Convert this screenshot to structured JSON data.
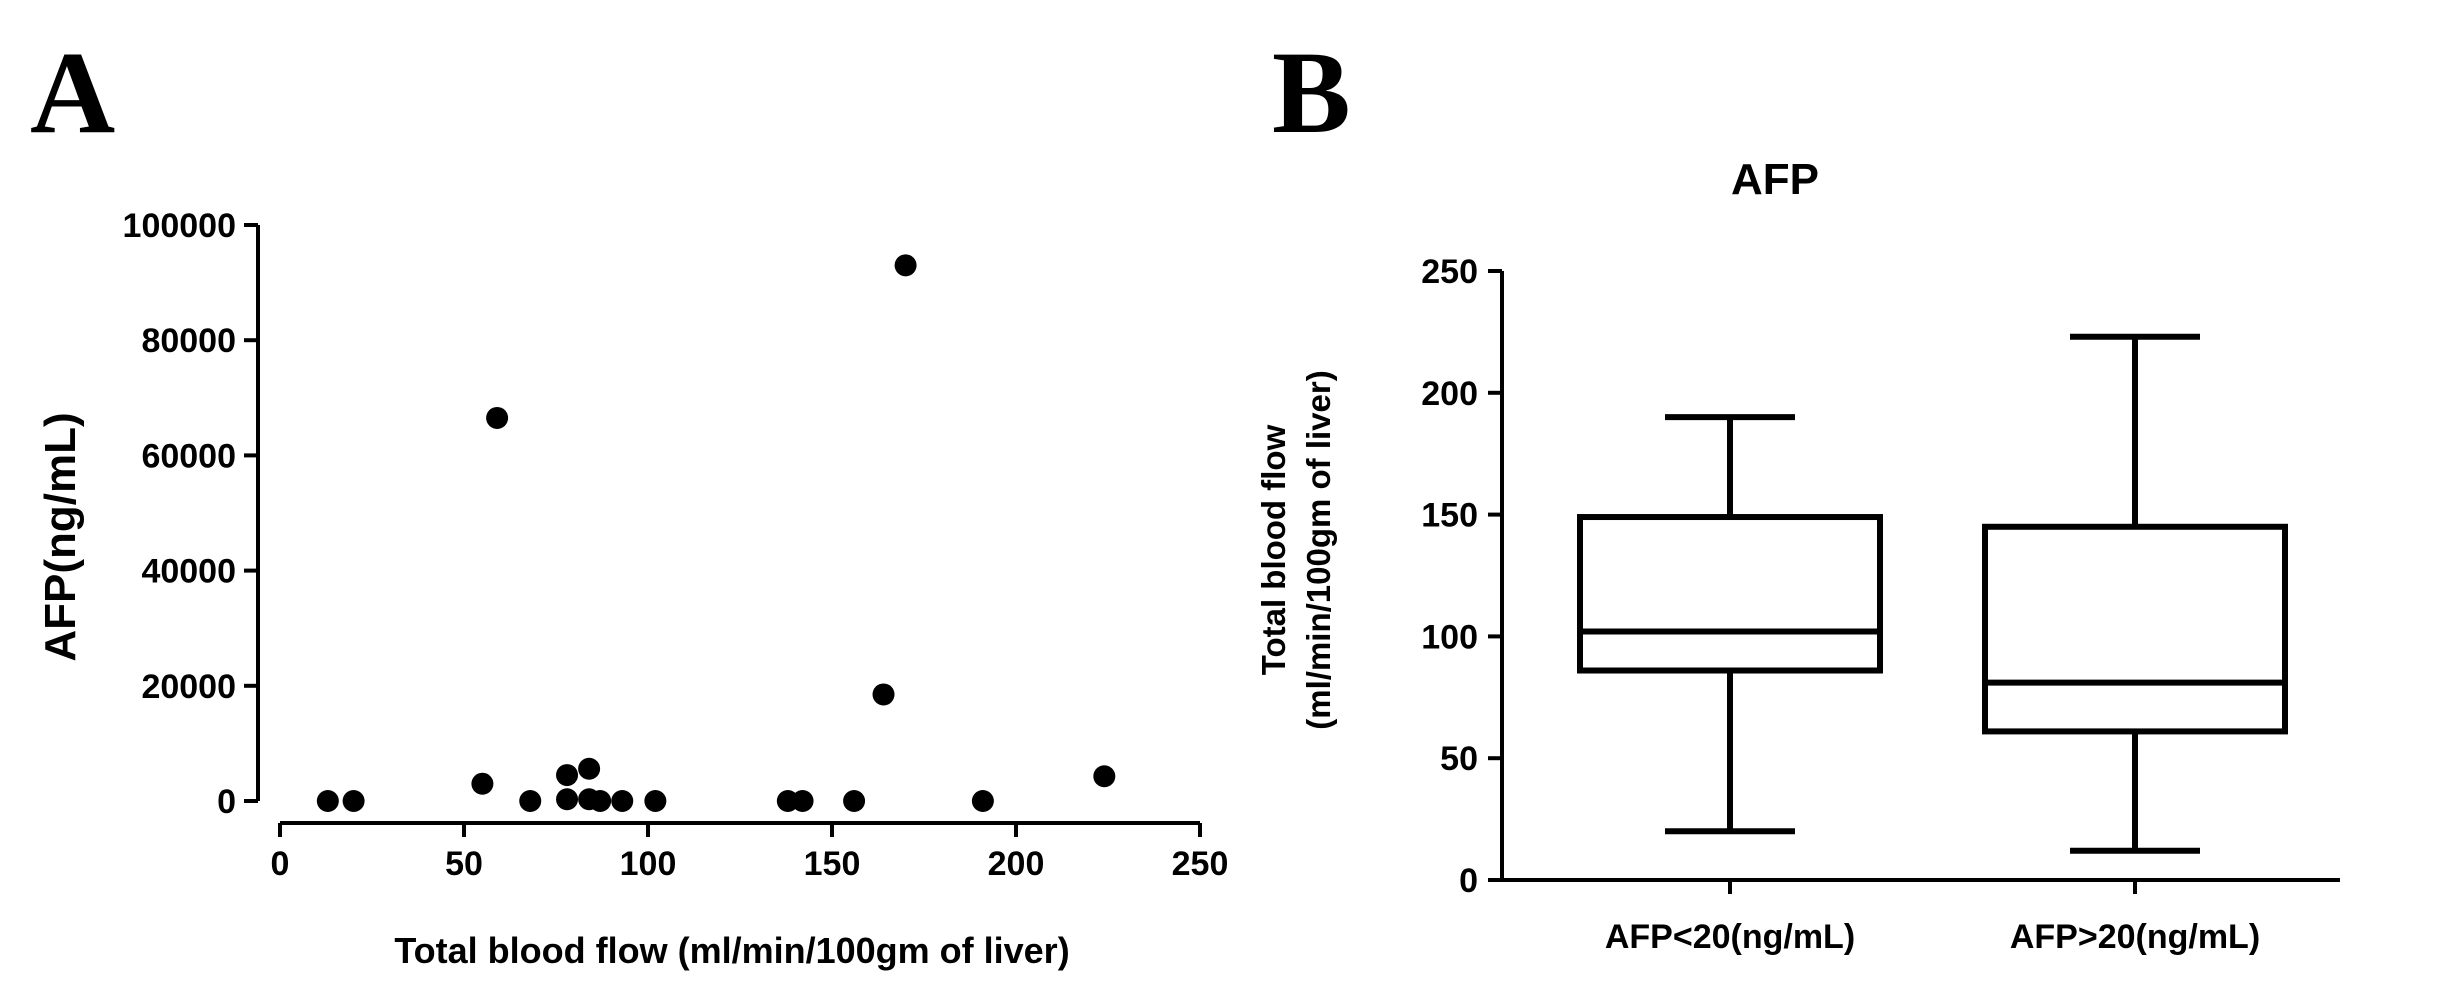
{
  "chart_data": [
    {
      "panel": "A",
      "type": "scatter",
      "title": "",
      "xlabel": "Total blood flow (ml/min/100gm of liver)",
      "ylabel": "AFP(ng/mL)",
      "xlim": [
        0,
        250
      ],
      "ylim": [
        0,
        100000
      ],
      "xticks": [
        0,
        50,
        100,
        150,
        200,
        250
      ],
      "yticks": [
        0,
        20000,
        40000,
        60000,
        80000,
        100000
      ],
      "grid": false,
      "points": [
        {
          "x": 13,
          "y": 0
        },
        {
          "x": 20,
          "y": 0
        },
        {
          "x": 55,
          "y": 3000
        },
        {
          "x": 59,
          "y": 66500
        },
        {
          "x": 68,
          "y": 0
        },
        {
          "x": 78,
          "y": 4500
        },
        {
          "x": 78,
          "y": 300
        },
        {
          "x": 84,
          "y": 5600
        },
        {
          "x": 84,
          "y": 300
        },
        {
          "x": 87,
          "y": 0
        },
        {
          "x": 93,
          "y": 0
        },
        {
          "x": 102,
          "y": 0
        },
        {
          "x": 138,
          "y": 0
        },
        {
          "x": 142,
          "y": 0
        },
        {
          "x": 156,
          "y": 0
        },
        {
          "x": 164,
          "y": 18500
        },
        {
          "x": 170,
          "y": 93000
        },
        {
          "x": 191,
          "y": 0
        },
        {
          "x": 224,
          "y": 4300
        }
      ]
    },
    {
      "panel": "B",
      "type": "box",
      "title": "AFP",
      "xlabel": "",
      "ylabel": [
        "Total blood flow",
        "(ml/min/100gm of liver)"
      ],
      "ylim": [
        0,
        250
      ],
      "yticks": [
        0,
        50,
        100,
        150,
        200,
        250
      ],
      "grid": false,
      "categories": [
        "AFP<20(ng/mL)",
        "AFP>20(ng/mL)"
      ],
      "boxes": [
        {
          "min": 20,
          "q1": 86,
          "median": 102,
          "q3": 149,
          "max": 190
        },
        {
          "min": 12,
          "q1": 61,
          "median": 81,
          "q3": 145,
          "max": 223
        }
      ]
    }
  ]
}
